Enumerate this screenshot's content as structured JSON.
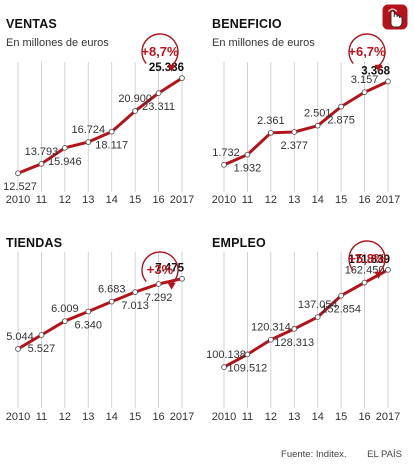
{
  "accent_color": "#b5121b",
  "gridline_color": "#c8c8c8",
  "icon": "touch-hand-icon",
  "footer": {
    "source": "Fuente: Inditex.",
    "publisher": "EL PAÍS"
  },
  "chart_data": [
    {
      "type": "line",
      "title": "VENTAS",
      "subtitle": "En millones de euros",
      "x": [
        "2010",
        "11",
        "12",
        "13",
        "14",
        "15",
        "16",
        "2017"
      ],
      "values": [
        12527,
        13793,
        15946,
        16724,
        18117,
        20900,
        23311,
        25336
      ],
      "value_labels": [
        "12.527",
        "13.793",
        "15.946",
        "16.724",
        "18.117",
        "20.900",
        "23.311",
        "25.336"
      ],
      "label_positions": [
        "below",
        "above",
        "below",
        "above",
        "below",
        "above",
        "below",
        "above"
      ],
      "annotation": "+8,7%",
      "ylim": [
        10000,
        27500
      ]
    },
    {
      "type": "line",
      "title": "BENEFICIO",
      "subtitle": "En millones de euros",
      "x": [
        "2010",
        "11",
        "12",
        "13",
        "14",
        "15",
        "16",
        "2017"
      ],
      "values": [
        1732,
        1932,
        2361,
        2377,
        2501,
        2875,
        3157,
        3368
      ],
      "value_labels": [
        "1.732",
        "1.932",
        "2.361",
        "2.377",
        "2.501",
        "2.875",
        "3.157",
        "3.368"
      ],
      "label_positions": [
        "above",
        "below",
        "above",
        "below",
        "above",
        "below",
        "above",
        "above"
      ],
      "annotation": "+6,7%",
      "ylim": [
        1200,
        3750
      ]
    },
    {
      "type": "line",
      "title": "TIENDAS",
      "subtitle": "",
      "x": [
        "2010",
        "11",
        "12",
        "13",
        "14",
        "15",
        "16",
        "2017"
      ],
      "values": [
        5044,
        5527,
        6009,
        6340,
        6683,
        7013,
        7292,
        7475
      ],
      "value_labels": [
        "5.044",
        "5.527",
        "6.009",
        "6.340",
        "6.683",
        "7.013",
        "7.292",
        "7.475"
      ],
      "label_positions": [
        "above",
        "below",
        "above",
        "below",
        "above",
        "below",
        "below",
        "above"
      ],
      "annotation": "+3%",
      "ylim": [
        3000,
        8400
      ]
    },
    {
      "type": "line",
      "title": "EMPLEO",
      "subtitle": "",
      "x": [
        "2010",
        "11",
        "12",
        "13",
        "14",
        "15",
        "16",
        "2017"
      ],
      "values": [
        100138,
        109512,
        120314,
        128313,
        137054,
        152854,
        162450,
        171839
      ],
      "value_labels": [
        "100.138",
        "109.512",
        "120.314",
        "128.313",
        "137.054",
        "152.854",
        "162.450",
        "171.839"
      ],
      "label_positions": [
        "above",
        "below",
        "above",
        "below",
        "above",
        "below",
        "above",
        "above"
      ],
      "annotation": "+5,8%",
      "ylim": [
        70000,
        185000
      ]
    }
  ]
}
